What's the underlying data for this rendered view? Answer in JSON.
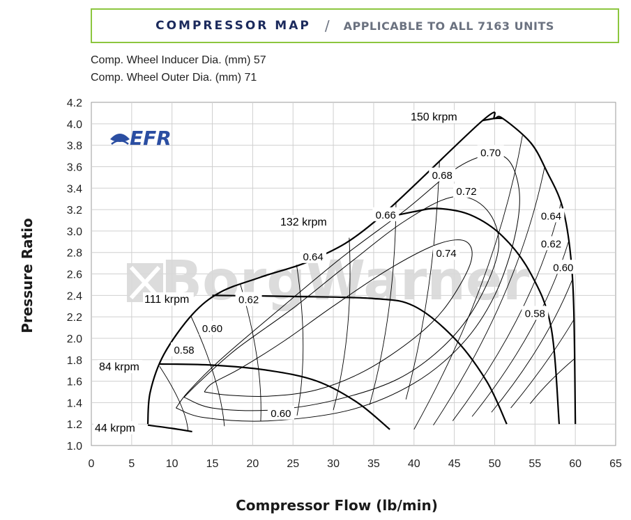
{
  "header": {
    "title": "COMPRESSOR MAP",
    "separator": "/",
    "subtitle": "APPLICABLE TO ALL 7163 UNITS"
  },
  "specs": {
    "inducer": "Comp. Wheel Inducer Dia. (mm) 57",
    "outer": "Comp. Wheel Outer Dia. (mm) 71"
  },
  "logo_text": "EFR",
  "watermark_text": "BorgWarner",
  "colors": {
    "accent_border": "#8cc63f",
    "title": "#1b2a5c",
    "logo": "#2b4ea2",
    "lines": "#000000",
    "grid": "#cfcfcf"
  },
  "chart_data": {
    "type": "line",
    "xlabel": "Compressor Flow (lb/min)",
    "ylabel": "Pressure Ratio",
    "xlim": [
      0,
      65
    ],
    "ylim": [
      1.0,
      4.2
    ],
    "xticks": [
      0,
      5,
      10,
      15,
      20,
      25,
      30,
      35,
      40,
      45,
      50,
      55,
      60,
      65
    ],
    "yticks": [
      "1.0",
      "1.2",
      "1.4",
      "1.6",
      "1.8",
      "2.0",
      "2.2",
      "2.4",
      "2.6",
      "2.8",
      "3.0",
      "3.2",
      "3.4",
      "3.6",
      "3.8",
      "4.0",
      "4.2"
    ],
    "grid": true,
    "surge_line": {
      "x": [
        7.0,
        7.3,
        9.0,
        12.5,
        16.0,
        21.0,
        28.0,
        35.0,
        48.5,
        50.0,
        51.0
      ],
      "y": [
        1.2,
        1.5,
        1.85,
        2.22,
        2.43,
        2.57,
        2.75,
        3.08,
        4.03,
        4.05,
        4.05
      ]
    },
    "choke_line": {
      "x": [
        51.0,
        54.5,
        56.5,
        58.3,
        59.3,
        59.8,
        60.0
      ],
      "y": [
        4.05,
        3.82,
        3.55,
        3.25,
        2.85,
        2.3,
        1.2
      ]
    },
    "speed_lines": [
      {
        "name": "44 krpm",
        "x": [
          7.0,
          10.0,
          12.5
        ],
        "y": [
          1.19,
          1.16,
          1.13
        ]
      },
      {
        "name": "84 krpm",
        "x": [
          8.5,
          15.0,
          22.0,
          28.0,
          33.0,
          37.0
        ],
        "y": [
          1.76,
          1.75,
          1.7,
          1.6,
          1.4,
          1.15
        ]
      },
      {
        "name": "111 krpm",
        "x": [
          15.0,
          25.0,
          35.0,
          40.0,
          45.0,
          49.0,
          51.5
        ],
        "y": [
          2.4,
          2.39,
          2.37,
          2.3,
          2.0,
          1.6,
          1.2
        ]
      },
      {
        "name": "132 krpm",
        "x": [
          35.0,
          40.0,
          43.0,
          47.0,
          51.0,
          54.5,
          57.0,
          58.0
        ],
        "y": [
          3.1,
          3.18,
          3.21,
          3.15,
          2.95,
          2.6,
          2.1,
          1.2
        ]
      },
      {
        "name": "150 krpm",
        "x": [
          48.5,
          50.0,
          51.0,
          54.5,
          56.5,
          58.3,
          59.3,
          59.8,
          60.0
        ],
        "y": [
          4.03,
          4.05,
          4.05,
          3.82,
          3.55,
          3.25,
          2.85,
          2.3,
          1.2
        ]
      }
    ],
    "speed_labels": [
      "44 krpm",
      "84 krpm",
      "111 krpm",
      "132 krpm",
      "150 krpm"
    ],
    "efficiency_islands": [
      {
        "name": "0.74",
        "x": [
          14.0,
          17.0,
          22.0,
          28.0,
          34.0,
          40.0,
          44.0,
          47.0,
          46.5,
          43.0,
          37.0,
          30.0,
          24.0,
          18.5,
          15.0,
          14.0
        ],
        "y": [
          1.5,
          1.47,
          1.46,
          1.52,
          1.7,
          2.0,
          2.3,
          2.7,
          2.9,
          2.88,
          2.65,
          2.3,
          1.98,
          1.72,
          1.58,
          1.5
        ]
      },
      {
        "name": "0.72",
        "x": [
          11.5,
          15.0,
          22.0,
          30.0,
          38.0,
          44.0,
          48.0,
          50.5,
          49.0,
          45.0,
          39.0,
          32.0,
          25.0,
          18.0,
          13.5,
          11.5
        ],
        "y": [
          1.45,
          1.35,
          1.33,
          1.42,
          1.62,
          1.95,
          2.35,
          2.85,
          3.2,
          3.32,
          3.1,
          2.7,
          2.28,
          1.9,
          1.6,
          1.45
        ]
      },
      {
        "name": "0.70",
        "x": [
          10.5,
          14.0,
          22.0,
          32.0,
          40.0,
          46.0,
          50.0,
          52.5,
          53.0,
          51.0,
          46.0,
          39.0,
          31.0,
          23.0,
          16.0,
          12.0,
          10.5
        ],
        "y": [
          1.35,
          1.26,
          1.23,
          1.33,
          1.58,
          1.95,
          2.4,
          2.95,
          3.4,
          3.7,
          3.62,
          3.2,
          2.75,
          2.25,
          1.8,
          1.5,
          1.35
        ]
      }
    ],
    "efficiency_levels_left": [
      0.58,
      0.6,
      0.62,
      0.64,
      0.66,
      0.68,
      0.7
    ],
    "efficiency_levels_right": [
      0.7,
      0.68,
      0.66,
      0.64,
      0.62,
      0.6,
      0.58
    ],
    "efficiency_labels": [
      {
        "text": "0.70",
        "x": 49.5,
        "y": 3.73
      },
      {
        "text": "0.68",
        "x": 43.5,
        "y": 3.52
      },
      {
        "text": "0.72",
        "x": 46.5,
        "y": 3.37
      },
      {
        "text": "0.66",
        "x": 36.5,
        "y": 3.15
      },
      {
        "text": "0.74",
        "x": 44.0,
        "y": 2.79
      },
      {
        "text": "0.64",
        "x": 27.5,
        "y": 2.76
      },
      {
        "text": "0.64",
        "x": 57.0,
        "y": 3.14
      },
      {
        "text": "0.62",
        "x": 57.0,
        "y": 2.88
      },
      {
        "text": "0.60",
        "x": 58.5,
        "y": 2.66
      },
      {
        "text": "0.62",
        "x": 19.5,
        "y": 2.36
      },
      {
        "text": "0.58",
        "x": 55.0,
        "y": 2.23
      },
      {
        "text": "0.60",
        "x": 15.0,
        "y": 2.09
      },
      {
        "text": "0.58",
        "x": 11.5,
        "y": 1.89
      },
      {
        "text": "0.60",
        "x": 23.5,
        "y": 1.3
      }
    ]
  }
}
